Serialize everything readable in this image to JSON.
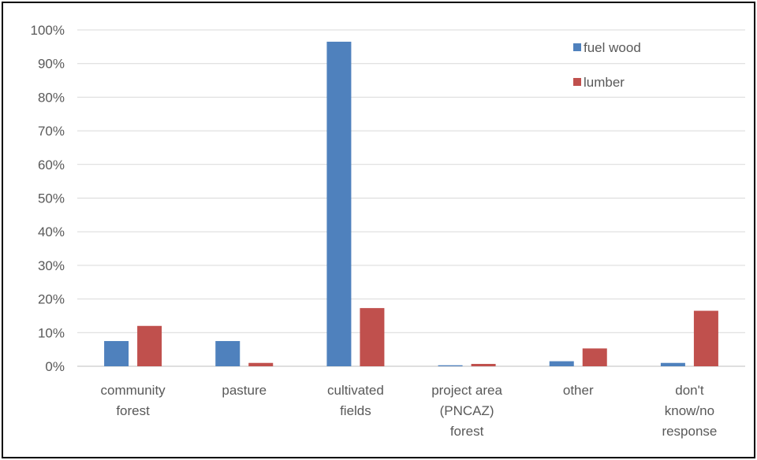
{
  "chart_data": {
    "type": "bar",
    "categories": [
      [
        "community",
        "forest"
      ],
      [
        "pasture"
      ],
      [
        "cultivated",
        "fields"
      ],
      [
        "project area",
        "(PNCAZ)",
        "forest"
      ],
      [
        "other"
      ],
      [
        "don't",
        "know/no",
        "response"
      ]
    ],
    "series": [
      {
        "name": "fuel wood",
        "color": "#4f81bd",
        "values": [
          7.5,
          7.5,
          96.5,
          0.3,
          1.5,
          1.0
        ]
      },
      {
        "name": "lumber",
        "color": "#c0504d",
        "values": [
          12.0,
          1.0,
          17.3,
          0.7,
          5.3,
          16.5
        ]
      }
    ],
    "y_ticks": [
      "0%",
      "10%",
      "20%",
      "30%",
      "40%",
      "50%",
      "60%",
      "70%",
      "80%",
      "90%",
      "100%"
    ],
    "ylim": [
      0,
      100
    ],
    "grid": true,
    "legend_position": "top-right"
  }
}
